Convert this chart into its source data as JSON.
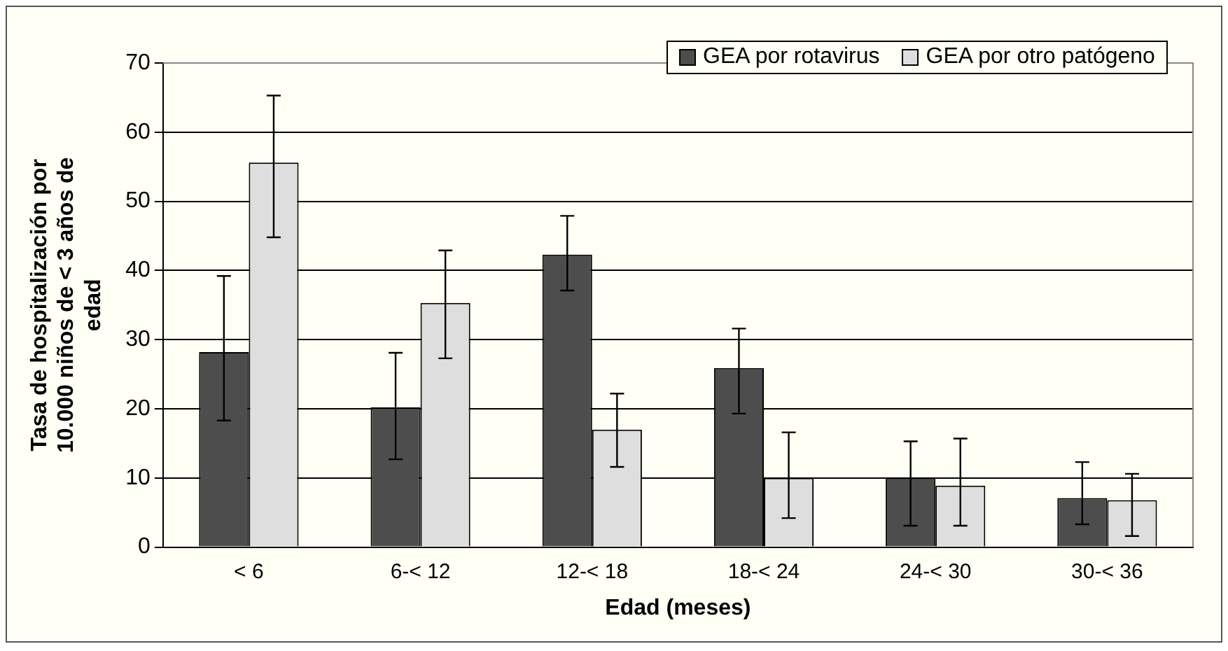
{
  "chart_data": {
    "type": "bar",
    "xlabel": "Edad (meses)",
    "ylabel": "Tasa de hospitalización por 10.000 niños de < 3 años de edad",
    "categories": [
      "< 6",
      "6-< 12",
      "12-< 18",
      "18-< 24",
      "24-< 30",
      "30-< 36"
    ],
    "series": [
      {
        "name": "GEA por rotavirus",
        "color": "#4d4d4d",
        "values": [
          28.2,
          20.2,
          42.3,
          25.9,
          10.0,
          7.1
        ],
        "errors": [
          [
            18.3,
            39.2
          ],
          [
            12.7,
            28.1
          ],
          [
            37.1,
            47.9
          ],
          [
            19.3,
            31.6
          ],
          [
            3.1,
            15.3
          ],
          [
            3.3,
            12.3
          ]
        ]
      },
      {
        "name": "GEA por otro patógeno",
        "color": "#dedede",
        "values": [
          55.6,
          35.3,
          17.0,
          10.0,
          8.9,
          6.8
        ],
        "errors": [
          [
            44.8,
            65.3
          ],
          [
            27.3,
            42.9
          ],
          [
            11.6,
            22.2
          ],
          [
            4.2,
            16.6
          ],
          [
            3.1,
            15.7
          ],
          [
            1.6,
            10.6
          ]
        ]
      }
    ],
    "ylim": [
      0,
      70
    ],
    "yticks": [
      0,
      10,
      20,
      30,
      40,
      50,
      60,
      70
    ],
    "grid": "y",
    "legend": "top right"
  }
}
